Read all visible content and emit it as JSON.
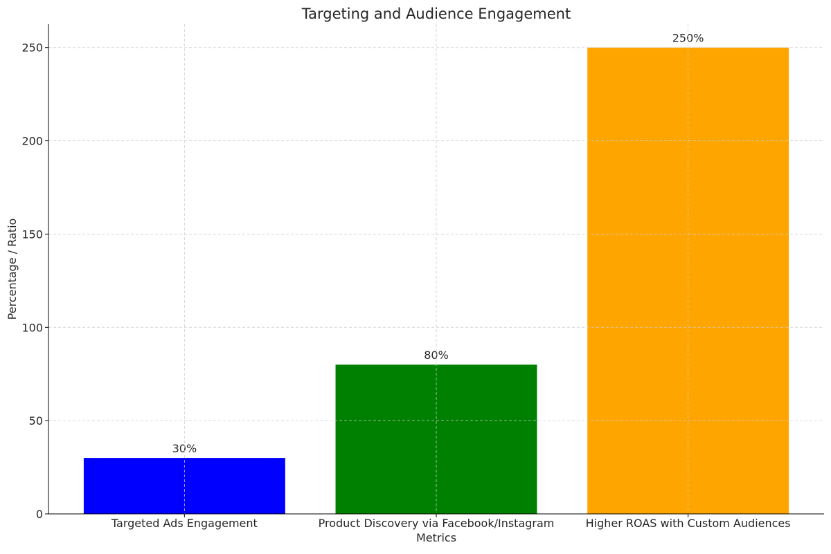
{
  "chart_data": {
    "type": "bar",
    "title": "Targeting and Audience Engagement",
    "xlabel": "Metrics",
    "ylabel": "Percentage / Ratio",
    "categories": [
      "Targeted Ads Engagement",
      "Product Discovery via Facebook/Instagram",
      "Higher ROAS with Custom Audiences"
    ],
    "values": [
      30,
      80,
      250
    ],
    "data_labels": [
      "30%",
      "80%",
      "250%"
    ],
    "colors": [
      "#0000ff",
      "#008000",
      "#ffa500"
    ],
    "ylim": [
      0,
      262.5
    ],
    "yticks": [
      0,
      50,
      100,
      150,
      200,
      250
    ],
    "grid": true,
    "legend": null
  }
}
